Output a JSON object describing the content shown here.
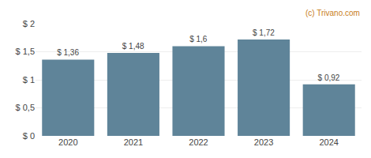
{
  "chart_data": {
    "type": "bar",
    "categories": [
      "2020",
      "2021",
      "2022",
      "2023",
      "2024"
    ],
    "values": [
      1.36,
      1.48,
      1.6,
      1.72,
      0.92
    ],
    "value_labels": [
      "$ 1,36",
      "$ 1,48",
      "$ 1,6",
      "$ 1,72",
      "$ 0,92"
    ],
    "data_labels": true,
    "color": "#5f8499",
    "ylim": [
      0,
      2.0
    ],
    "yticks": [
      {
        "value": 0,
        "label": "$ 0"
      },
      {
        "value": 0.5,
        "label": "$ 0,5"
      },
      {
        "value": 1.0,
        "label": "$ 1"
      },
      {
        "value": 1.5,
        "label": "$ 1,5"
      },
      {
        "value": 2.0,
        "label": "$ 2"
      }
    ],
    "grid": true,
    "annotations": [
      {
        "text": "(c) Trivano.com",
        "color": "#c87d20"
      }
    ]
  }
}
